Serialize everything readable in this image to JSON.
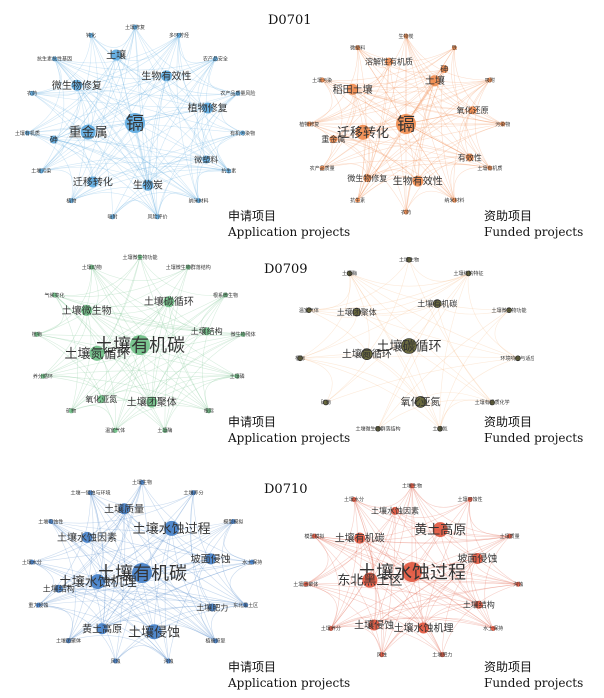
{
  "sections": [
    {
      "code": "D0701",
      "application": {
        "color": "#5aa9e0",
        "labels": [
          {
            "text": "镉",
            "size": "xl"
          },
          {
            "text": "重金属",
            "size": "l"
          },
          {
            "text": "生物有效性",
            "size": "m"
          },
          {
            "text": "生物炭",
            "size": "m"
          },
          {
            "text": "微生物修复",
            "size": "m"
          },
          {
            "text": "植物修复",
            "size": "m"
          },
          {
            "text": "迁移转化",
            "size": "m"
          },
          {
            "text": "土壤",
            "size": "m"
          },
          {
            "text": "微塑料",
            "size": "s"
          },
          {
            "text": "砷",
            "size": "s"
          },
          {
            "text": "土壤修复",
            "size": "xs"
          },
          {
            "text": "多环芳烃",
            "size": "xs"
          },
          {
            "text": "农产品安全",
            "size": "xs"
          },
          {
            "text": "农产品质量风险",
            "size": "xs"
          },
          {
            "text": "有机污染物",
            "size": "xs"
          },
          {
            "text": "抗生素",
            "size": "xs"
          },
          {
            "text": "纳米材料",
            "size": "xs"
          },
          {
            "text": "风险评价",
            "size": "xs"
          },
          {
            "text": "吸附",
            "size": "xs"
          },
          {
            "text": "植物",
            "size": "xs"
          },
          {
            "text": "土壤污染",
            "size": "xs"
          },
          {
            "text": "土壤有机质",
            "size": "xs"
          },
          {
            "text": "农药",
            "size": "xs"
          },
          {
            "text": "抗生素抗性基因",
            "size": "xs"
          },
          {
            "text": "钝化",
            "size": "xs"
          }
        ]
      },
      "funded": {
        "color": "#f08a4b",
        "labels": [
          {
            "text": "镉",
            "size": "xl"
          },
          {
            "text": "迁移转化",
            "size": "l"
          },
          {
            "text": "土壤",
            "size": "m"
          },
          {
            "text": "生物有效性",
            "size": "m"
          },
          {
            "text": "稻田土壤",
            "size": "m"
          },
          {
            "text": "氧化还原",
            "size": "s"
          },
          {
            "text": "微生物修复",
            "size": "s"
          },
          {
            "text": "溶解性有机质",
            "size": "s"
          },
          {
            "text": "有效性",
            "size": "s"
          },
          {
            "text": "重金属",
            "size": "s"
          },
          {
            "text": "砷",
            "size": "s"
          },
          {
            "text": "生物炭",
            "size": "xs"
          },
          {
            "text": "铁",
            "size": "xs"
          },
          {
            "text": "吸附",
            "size": "xs"
          },
          {
            "text": "污染物",
            "size": "xs"
          },
          {
            "text": "土壤有机质",
            "size": "xs"
          },
          {
            "text": "纳米材料",
            "size": "xs"
          },
          {
            "text": "农药",
            "size": "xs"
          },
          {
            "text": "抗生素",
            "size": "xs"
          },
          {
            "text": "农产品质量",
            "size": "xs"
          },
          {
            "text": "植物修复",
            "size": "xs"
          },
          {
            "text": "土壤污染",
            "size": "xs"
          },
          {
            "text": "微塑料",
            "size": "xs"
          }
        ]
      }
    },
    {
      "code": "D0709",
      "application": {
        "color": "#6cbf84",
        "labels": [
          {
            "text": "土壤有机碳",
            "size": "xl"
          },
          {
            "text": "土壤氮循环",
            "size": "l"
          },
          {
            "text": "土壤碳循环",
            "size": "m"
          },
          {
            "text": "土壤团聚体",
            "size": "m"
          },
          {
            "text": "土壤微生物",
            "size": "m"
          },
          {
            "text": "土壤结构",
            "size": "s"
          },
          {
            "text": "氧化亚氮",
            "size": "s"
          },
          {
            "text": "土壤微生物功能",
            "size": "xs"
          },
          {
            "text": "土壤微生物群落结构",
            "size": "xs"
          },
          {
            "text": "根系微生物",
            "size": "xs"
          },
          {
            "text": "微生物残体",
            "size": "xs"
          },
          {
            "text": "土壤磷",
            "size": "xs"
          },
          {
            "text": "根际",
            "size": "xs"
          },
          {
            "text": "土壤酶",
            "size": "xs"
          },
          {
            "text": "温室气体",
            "size": "xs"
          },
          {
            "text": "矿物",
            "size": "xs"
          },
          {
            "text": "养分循环",
            "size": "xs"
          },
          {
            "text": "植物",
            "size": "xs"
          },
          {
            "text": "气候变化",
            "size": "xs"
          },
          {
            "text": "土壤动物",
            "size": "xs"
          }
        ]
      },
      "funded": {
        "color": "#f5b27a",
        "labels": [
          {
            "text": "土壤碳循环",
            "size": "l"
          },
          {
            "text": "土壤氮循环",
            "size": "m"
          },
          {
            "text": "土壤有机碳",
            "size": "s"
          },
          {
            "text": "氧化亚氮",
            "size": "m"
          },
          {
            "text": "土壤团聚体",
            "size": "s"
          },
          {
            "text": "土壤生物",
            "size": "xs"
          },
          {
            "text": "土壤结构特征",
            "size": "xs"
          },
          {
            "text": "土壤微生物功能",
            "size": "xs"
          },
          {
            "text": "环境响应与适应",
            "size": "xs"
          },
          {
            "text": "土壤有机质化学",
            "size": "xs"
          },
          {
            "text": "土壤氮",
            "size": "xs"
          },
          {
            "text": "土壤微生物群落结构",
            "size": "xs"
          },
          {
            "text": "矿物",
            "size": "xs"
          },
          {
            "text": "根际",
            "size": "xs"
          },
          {
            "text": "温室气体",
            "size": "xs"
          },
          {
            "text": "土壤酶",
            "size": "xs"
          }
        ]
      }
    },
    {
      "code": "D0710",
      "application": {
        "color": "#3f7cc6",
        "labels": [
          {
            "text": "土壤有机碳",
            "size": "xl"
          },
          {
            "text": "土壤水蚀机理",
            "size": "l"
          },
          {
            "text": "土壤水蚀过程",
            "size": "l"
          },
          {
            "text": "土壤侵蚀",
            "size": "l"
          },
          {
            "text": "土壤水蚀因素",
            "size": "m"
          },
          {
            "text": "坡面侵蚀",
            "size": "m"
          },
          {
            "text": "黄土高原",
            "size": "m"
          },
          {
            "text": "土壤质量",
            "size": "m"
          },
          {
            "text": "土壤肥力",
            "size": "s"
          },
          {
            "text": "土壤结构",
            "size": "s"
          },
          {
            "text": "土壤生物",
            "size": "xs"
          },
          {
            "text": "土壤养分",
            "size": "xs"
          },
          {
            "text": "模型模拟",
            "size": "xs"
          },
          {
            "text": "水土保持",
            "size": "xs"
          },
          {
            "text": "东北黑土区",
            "size": "xs"
          },
          {
            "text": "植被恢复",
            "size": "xs"
          },
          {
            "text": "沟蚀",
            "size": "xs"
          },
          {
            "text": "风蚀",
            "size": "xs"
          },
          {
            "text": "土壤团聚体",
            "size": "xs"
          },
          {
            "text": "重力侵蚀",
            "size": "xs"
          },
          {
            "text": "土壤水分",
            "size": "xs"
          },
          {
            "text": "土壤可蚀性",
            "size": "xs"
          },
          {
            "text": "土壤一侵蚀与环境",
            "size": "xs"
          }
        ]
      },
      "funded": {
        "color": "#e0533b",
        "labels": [
          {
            "text": "土壤水蚀过程",
            "size": "xl"
          },
          {
            "text": "东北黑土区",
            "size": "l"
          },
          {
            "text": "黄土高原",
            "size": "l"
          },
          {
            "text": "土壤水蚀机理",
            "size": "m"
          },
          {
            "text": "土壤有机碳",
            "size": "m"
          },
          {
            "text": "坡面侵蚀",
            "size": "m"
          },
          {
            "text": "土壤侵蚀",
            "size": "m"
          },
          {
            "text": "土壤水蚀因素",
            "size": "s"
          },
          {
            "text": "土壤结构",
            "size": "s"
          },
          {
            "text": "土壤生物",
            "size": "xs"
          },
          {
            "text": "土壤可蚀性",
            "size": "xs"
          },
          {
            "text": "土壤质量",
            "size": "xs"
          },
          {
            "text": "沟蚀",
            "size": "xs"
          },
          {
            "text": "水土保持",
            "size": "xs"
          },
          {
            "text": "土壤肥力",
            "size": "xs"
          },
          {
            "text": "风蚀",
            "size": "xs"
          },
          {
            "text": "土壤养分",
            "size": "xs"
          },
          {
            "text": "土壤团聚体",
            "size": "xs"
          },
          {
            "text": "模型模拟",
            "size": "xs"
          },
          {
            "text": "土壤水分",
            "size": "xs"
          }
        ]
      }
    }
  ],
  "captions": {
    "application_cn": "申请项目",
    "application_en": "Application projects",
    "funded_cn": "资助项目",
    "funded_en": "Funded projects"
  }
}
